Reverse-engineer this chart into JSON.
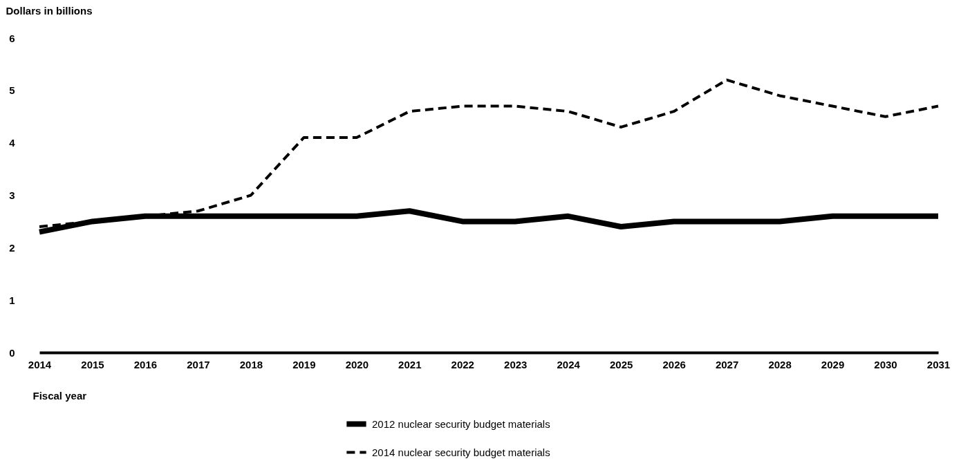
{
  "chart_data": {
    "type": "line",
    "xlabel": "Fiscal year",
    "ylabel": "Dollars in billions",
    "categories": [
      "2014",
      "2015",
      "2016",
      "2017",
      "2018",
      "2019",
      "2020",
      "2021",
      "2022",
      "2023",
      "2024",
      "2025",
      "2026",
      "2027",
      "2028",
      "2029",
      "2030",
      "2031"
    ],
    "series": [
      {
        "name": "2012 nuclear security budget materials",
        "color": "#000000",
        "line_style": "solid",
        "values": [
          2.3,
          2.5,
          2.6,
          2.6,
          2.6,
          2.6,
          2.6,
          2.7,
          2.5,
          2.5,
          2.6,
          2.4,
          2.5,
          2.5,
          2.5,
          2.6,
          2.6,
          2.6
        ]
      },
      {
        "name": "2014 nuclear security budget materials",
        "color": "#000000",
        "line_style": "dashed",
        "values": [
          2.4,
          2.5,
          2.6,
          2.7,
          3.0,
          4.1,
          4.1,
          4.6,
          4.7,
          4.7,
          4.6,
          4.3,
          4.6,
          5.2,
          4.9,
          4.7,
          4.5,
          4.7
        ]
      }
    ],
    "ylim": [
      0,
      6
    ],
    "yticks": [
      0,
      1,
      2,
      3,
      4,
      5,
      6
    ],
    "grid": false,
    "legend": "bottom"
  }
}
